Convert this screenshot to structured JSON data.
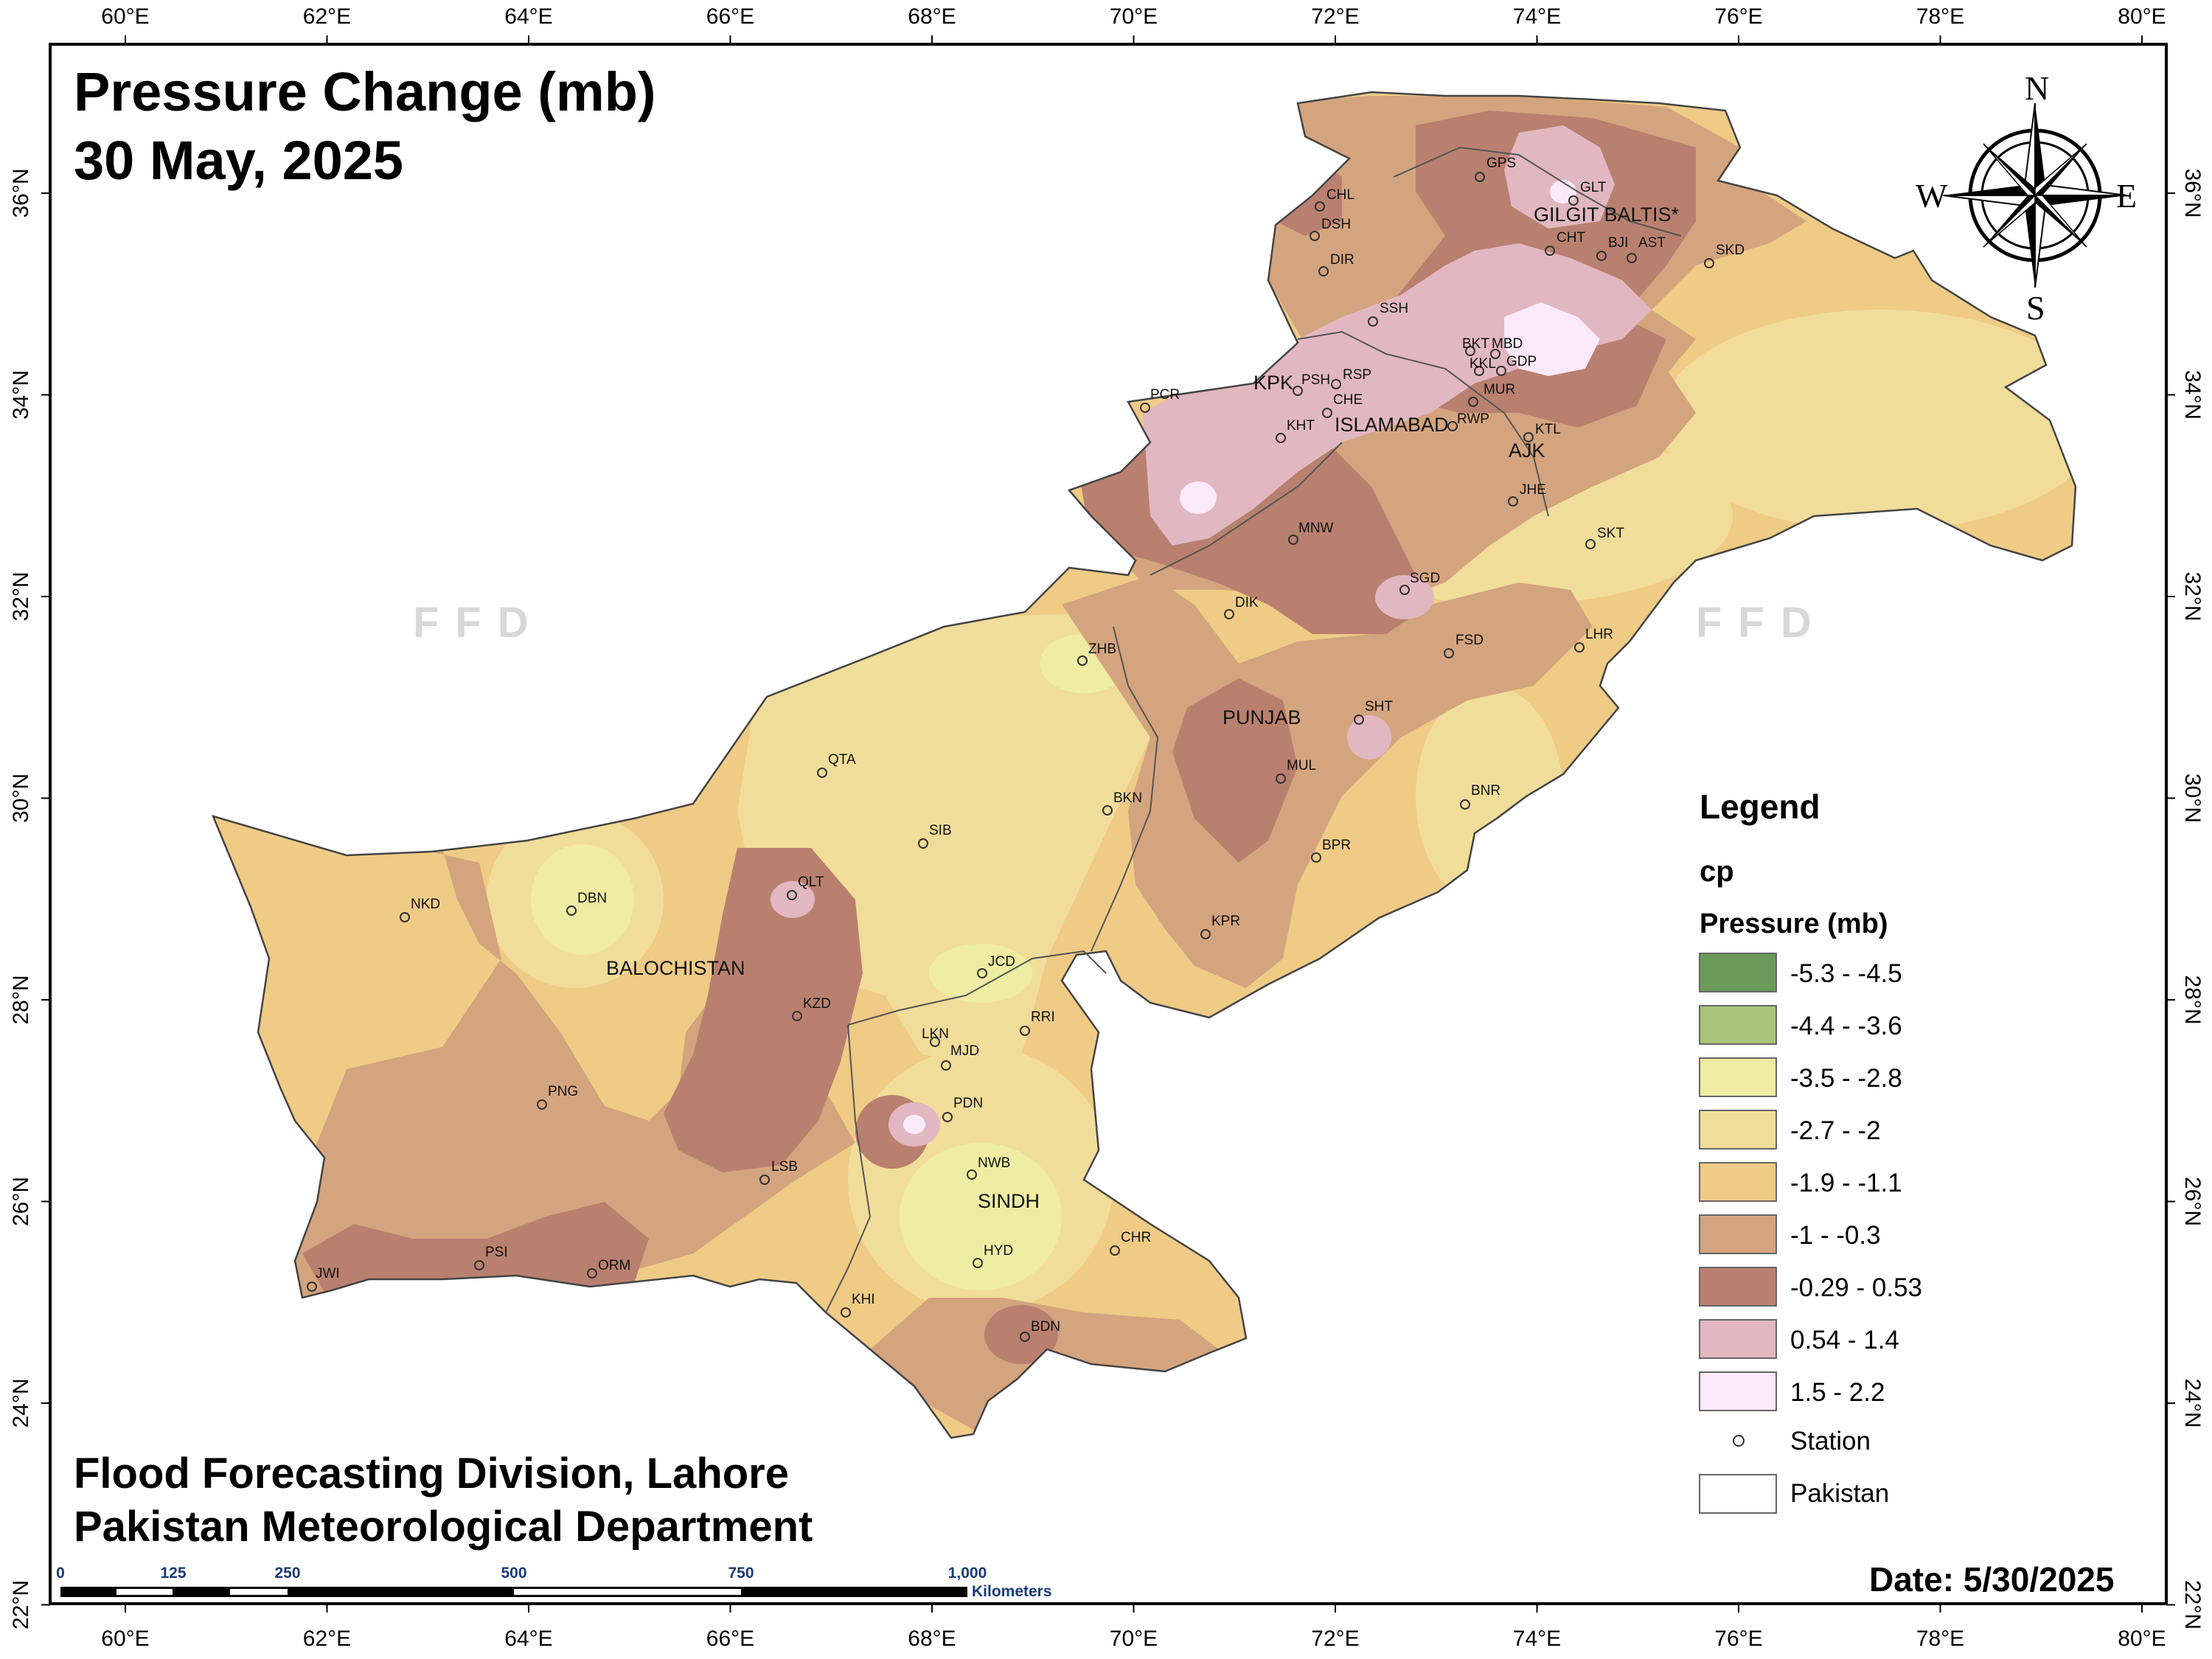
{
  "title": {
    "line1": "Pressure Change (mb)",
    "line2": "30 May, 2025"
  },
  "credits": {
    "line1": "Flood Forecasting Division, Lahore",
    "line2": "Pakistan Meteorological Department"
  },
  "date_label": "Date: 5/30/2025",
  "watermark": "FFD",
  "compass": {
    "n": "N",
    "s": "S",
    "e": "E",
    "w": "W"
  },
  "axes": {
    "longitude_ticks": [
      "60°E",
      "62°E",
      "64°E",
      "66°E",
      "68°E",
      "70°E",
      "72°E",
      "74°E",
      "76°E",
      "78°E",
      "80°E"
    ],
    "latitude_ticks": [
      "36°N",
      "34°N",
      "32°N",
      "30°N",
      "28°N",
      "26°N",
      "24°N",
      "22°N"
    ]
  },
  "scale_bar": {
    "ticks": [
      "0",
      "125",
      "250",
      "500",
      "750",
      "1,000"
    ],
    "unit": "Kilometers"
  },
  "legend": {
    "title": "Legend",
    "layer": "cp",
    "heading": "Pressure (mb)",
    "classes": [
      {
        "label": "-5.3 - -4.5",
        "color": "#6b9a5a"
      },
      {
        "label": "-4.4 - -3.6",
        "color": "#a9c57a"
      },
      {
        "label": "-3.5 - -2.8",
        "color": "#eeeda3"
      },
      {
        "label": "-2.7 - -2",
        "color": "#f1dd9a"
      },
      {
        "label": "-1.9 - -1.1",
        "color": "#efcb86"
      },
      {
        "label": "-1 - -0.3",
        "color": "#d4a47e"
      },
      {
        "label": "-0.29 - 0.53",
        "color": "#b9806f"
      },
      {
        "label": "0.54 - 1.4",
        "color": "#e1b7c1"
      },
      {
        "label": "1.5 - 2.2",
        "color": "#fae9f9"
      }
    ],
    "station_label": "Station",
    "boundary_label": "Pakistan"
  },
  "regions": {
    "gilgit": "GILGIT BALTIS*",
    "kpk": "KPK",
    "islamabad": "ISLAMABAD",
    "ajk": "AJK",
    "punjab": "PUNJAB",
    "balochistan": "BALOCHISTAN",
    "sindh": "SINDH"
  },
  "stations": {
    "GPS": "GPS",
    "GLT": "GLT",
    "CHL": "CHL",
    "DSH": "DSH",
    "DIR": "DIR",
    "CHT": "CHT",
    "BJI": "BJI",
    "AST": "AST",
    "SKD": "SKD",
    "SSH": "SSH",
    "BKT": "BKT",
    "MBD": "MBD",
    "KKL": "KKL",
    "GDP": "GDP",
    "PSH": "PSH",
    "RSP": "RSP",
    "CHE": "CHE",
    "MUR": "MUR",
    "PCR": "PCR",
    "KHT": "KHT",
    "RWP": "RWP",
    "KTL": "KTL",
    "JHE": "JHE",
    "SKT": "SKT",
    "MNW": "MNW",
    "SGD": "SGD",
    "DIK": "DIK",
    "LHR": "LHR",
    "FSD": "FSD",
    "ZHB": "ZHB",
    "SHT": "SHT",
    "QTA": "QTA",
    "MUL": "MUL",
    "BKN": "BKN",
    "BNR": "BNR",
    "SIB": "SIB",
    "BPR": "BPR",
    "NKD": "NKD",
    "DBN": "DBN",
    "QLT": "QLT",
    "KPR": "KPR",
    "JCD": "JCD",
    "KZD": "KZD",
    "RRI": "RRI",
    "LKN": "LKN",
    "MJD": "MJD",
    "PNG": "PNG",
    "PDN": "PDN",
    "LSB": "LSB",
    "NWB": "NWB",
    "CHR": "CHR",
    "HYD": "HYD",
    "JWI": "JWI",
    "PSI": "PSI",
    "ORM": "ORM",
    "KHI": "KHI",
    "BDN": "BDN"
  }
}
